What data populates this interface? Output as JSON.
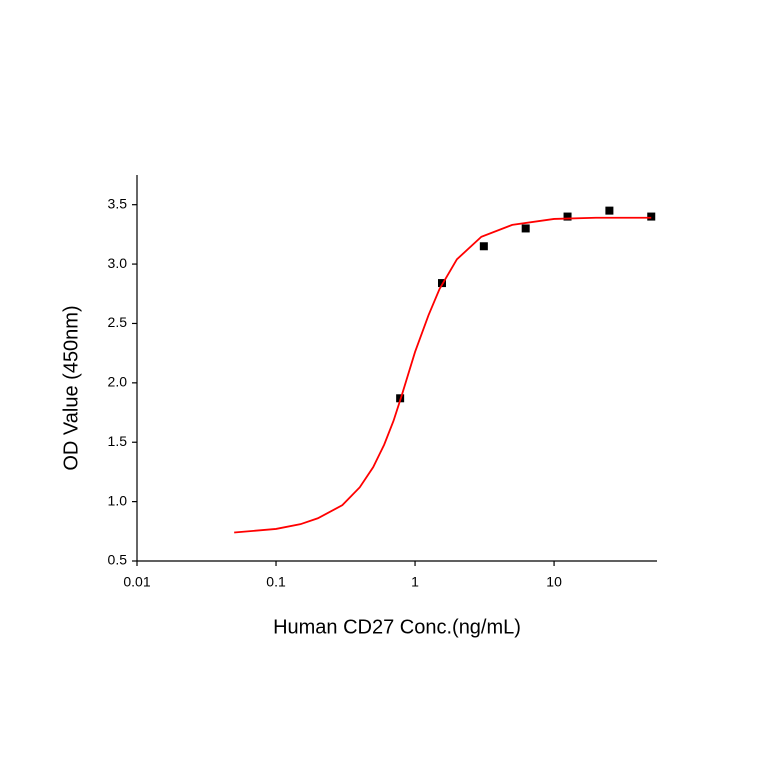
{
  "chart_data": {
    "type": "scatter",
    "xlabel": "Human CD27 Conc.(ng/mL)",
    "ylabel": "OD Value (450nm)",
    "xlog": true,
    "xlim": [
      0.01,
      55
    ],
    "xticks": [
      0.01,
      0.1,
      1,
      10
    ],
    "ylim": [
      0.5,
      3.75
    ],
    "yticks": [
      0.5,
      {
        "value": 1,
        "label": "1.0"
      },
      1.5,
      {
        "value": 2,
        "label": "2.0"
      },
      2.5,
      {
        "value": 3,
        "label": "3.0"
      },
      3.5
    ],
    "series": [
      {
        "style": "markers",
        "color": "#000000",
        "x": [
          0.78125,
          1.5625,
          3.125,
          6.25,
          12.5,
          25,
          50
        ],
        "values": [
          1.87,
          2.84,
          3.15,
          3.3,
          3.4,
          3.45,
          3.4
        ]
      },
      {
        "style": "line",
        "color": "#ff0000",
        "x": [
          0.05,
          0.1,
          0.15,
          0.2,
          0.3,
          0.4,
          0.5,
          0.6,
          0.7,
          0.8,
          1,
          1.25,
          1.5,
          2,
          3,
          5,
          10,
          20,
          50
        ],
        "values": [
          0.74,
          0.77,
          0.81,
          0.86,
          0.97,
          1.12,
          1.29,
          1.48,
          1.68,
          1.89,
          2.26,
          2.57,
          2.79,
          3.04,
          3.23,
          3.33,
          3.38,
          3.39,
          3.39
        ]
      }
    ]
  }
}
